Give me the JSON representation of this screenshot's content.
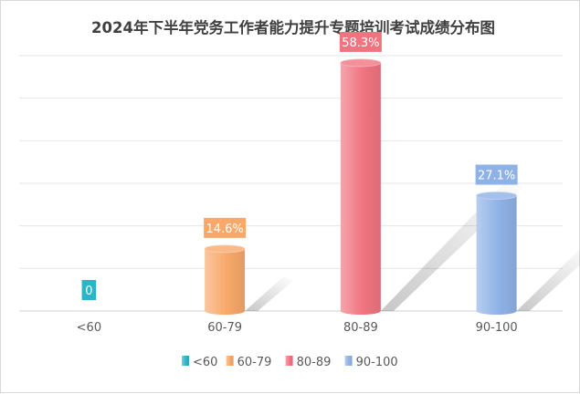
{
  "chart_data": {
    "type": "bar",
    "title": "2024年下半年党务工作者能力提升专题培训考试成绩分布图",
    "categories": [
      "<60",
      "60-79",
      "80-89",
      "90-100"
    ],
    "values": [
      0,
      14.6,
      58.3,
      27.1
    ],
    "value_labels": [
      "0",
      "14.6%",
      "58.3%",
      "27.1%"
    ],
    "colors": [
      "#2bb6c8",
      "#f7a86a",
      "#f07480",
      "#8fb2e6"
    ],
    "ylim": [
      0,
      60
    ],
    "yticks": [
      0,
      10,
      20,
      30,
      40,
      50,
      60
    ],
    "grid": true,
    "bar_style": "cylinder",
    "legend": {
      "position": "bottom",
      "entries": [
        "<60",
        "60-79",
        "80-89",
        "90-100"
      ]
    }
  }
}
